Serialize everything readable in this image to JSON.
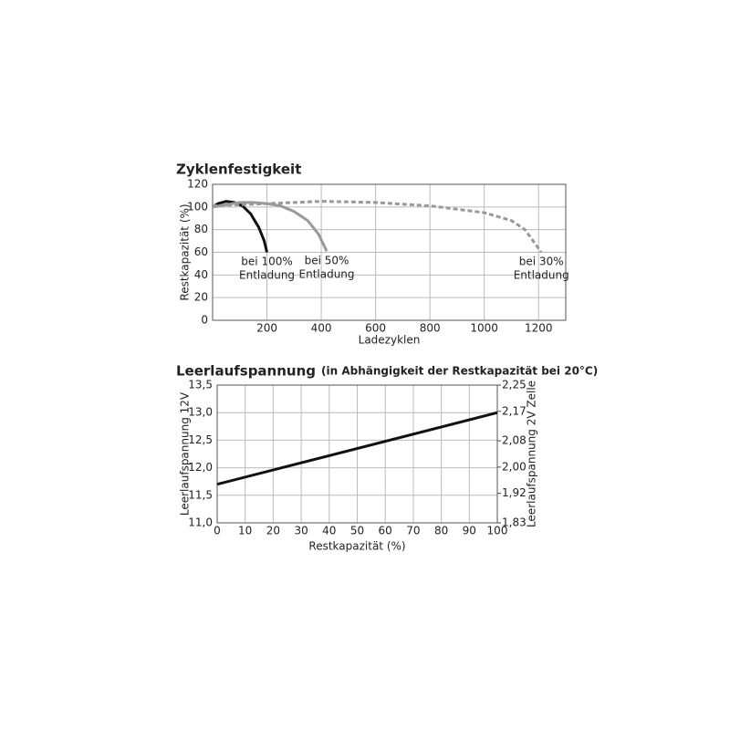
{
  "chart_data": [
    {
      "type": "line",
      "title": "Zyklenfestigkeit",
      "x_label": "Ladezyklen",
      "y_label": "Restkapazität (%)",
      "xlim": [
        0,
        1300
      ],
      "xticks": [
        200,
        400,
        600,
        800,
        1000,
        1200
      ],
      "ylim": [
        0,
        120
      ],
      "yticks": [
        0,
        20,
        40,
        60,
        80,
        100,
        120
      ],
      "grid": true,
      "series": [
        {
          "name": "bei 100% Entladung",
          "color": "#111111",
          "dashed": false,
          "x": [
            0,
            20,
            50,
            80,
            110,
            140,
            170,
            190,
            200
          ],
          "values": [
            100,
            103,
            105,
            104,
            101,
            94,
            82,
            70,
            60
          ]
        },
        {
          "name": "bei 50% Entladung",
          "color": "#999999",
          "dashed": false,
          "x": [
            0,
            50,
            100,
            150,
            200,
            250,
            300,
            350,
            390,
            420
          ],
          "values": [
            100,
            102,
            104,
            104,
            103,
            101,
            96,
            88,
            76,
            61
          ]
        },
        {
          "name": "bei 30% Entladung",
          "color": "#999999",
          "dashed": true,
          "x": [
            0,
            200,
            400,
            600,
            800,
            900,
            1000,
            1100,
            1150,
            1210
          ],
          "values": [
            101,
            103,
            105,
            104,
            101,
            98,
            95,
            88,
            80,
            60
          ]
        }
      ]
    },
    {
      "type": "line",
      "title": "Leerlaufspannung",
      "subtitle": "(in Abhängigkeit der Restkapazität bei 20°C)",
      "x_label": "Restkapazität (%)",
      "y_label": "Leerlaufspannung 12V",
      "y2_label": "Leerlaufspannung 2V Zelle",
      "xlim": [
        0,
        100
      ],
      "xticks": [
        0,
        10,
        20,
        30,
        40,
        50,
        60,
        70,
        80,
        90,
        100
      ],
      "ylim": [
        11,
        13.5
      ],
      "yticks": [
        {
          "value": 11,
          "label": "11,0"
        },
        {
          "value": 11.5,
          "label": "11,5"
        },
        {
          "value": 12,
          "label": "12,0"
        },
        {
          "value": 12.5,
          "label": "12,5"
        },
        {
          "value": 13,
          "label": "13,0"
        },
        {
          "value": 13.5,
          "label": "13,5"
        }
      ],
      "y2lim": [
        1.83,
        2.25
      ],
      "y2ticks": [
        {
          "value": 1.83,
          "label": "1,83"
        },
        {
          "value": 1.92,
          "label": "1,92"
        },
        {
          "value": 2.0,
          "label": "2,00"
        },
        {
          "value": 2.08,
          "label": "2,08"
        },
        {
          "value": 2.17,
          "label": "2,17"
        },
        {
          "value": 2.25,
          "label": "2,25"
        }
      ],
      "grid": true,
      "x": [
        0,
        100
      ],
      "series": [
        {
          "color": "#111111",
          "dashed": false,
          "values": [
            11.7,
            13.0
          ]
        }
      ]
    }
  ]
}
